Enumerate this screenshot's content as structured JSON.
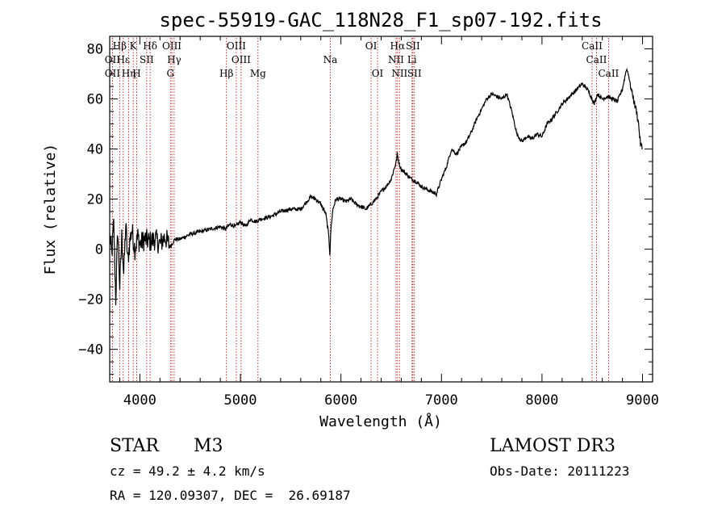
{
  "chart_data": {
    "type": "line",
    "title": "spec-55919-GAC_118N28_F1_sp07-192.fits",
    "xlabel": "Wavelength (Å)",
    "ylabel": "Flux (relative)",
    "xlim": [
      3700,
      9100
    ],
    "ylim": [
      -53,
      85
    ],
    "x_ticks": [
      4000,
      5000,
      6000,
      7000,
      8000,
      9000
    ],
    "x_tick_labels": [
      "4000",
      "5000",
      "6000",
      "7000",
      "8000",
      "9000"
    ],
    "y_ticks": [
      -40,
      -20,
      0,
      20,
      40,
      60,
      80
    ],
    "y_tick_labels": [
      "−40",
      "−20",
      "0",
      "20",
      "40",
      "60",
      "80"
    ],
    "grid": false,
    "series": [
      {
        "name": "spectrum",
        "x": [
          3700,
          3720,
          3740,
          3760,
          3780,
          3800,
          3820,
          3840,
          3860,
          3880,
          3900,
          3920,
          3950,
          3980,
          4000,
          4050,
          4100,
          4150,
          4200,
          4250,
          4300,
          4350,
          4400,
          4450,
          4500,
          4600,
          4700,
          4800,
          4850,
          4900,
          4950,
          5000,
          5050,
          5100,
          5150,
          5200,
          5300,
          5400,
          5500,
          5600,
          5700,
          5750,
          5800,
          5850,
          5880,
          5890,
          5900,
          5920,
          5950,
          6000,
          6050,
          6100,
          6150,
          6200,
          6250,
          6300,
          6350,
          6400,
          6450,
          6500,
          6550,
          6560,
          6570,
          6580,
          6600,
          6650,
          6700,
          6750,
          6800,
          6850,
          6900,
          6950,
          7000,
          7050,
          7100,
          7150,
          7200,
          7250,
          7300,
          7350,
          7400,
          7450,
          7500,
          7550,
          7600,
          7650,
          7700,
          7750,
          7800,
          7850,
          7900,
          7950,
          8000,
          8050,
          8100,
          8150,
          8200,
          8250,
          8300,
          8350,
          8400,
          8450,
          8500,
          8520,
          8550,
          8600,
          8650,
          8700,
          8750,
          8800,
          8820,
          8840,
          8860,
          8880,
          8900,
          8920,
          8940,
          8960,
          8980,
          9000
        ],
        "values": [
          5,
          -2,
          10,
          -20,
          8,
          -15,
          5,
          -10,
          10,
          -5,
          3,
          8,
          0,
          5,
          2,
          4,
          3,
          4,
          2,
          5,
          1,
          4,
          4,
          5,
          6,
          7,
          8,
          9,
          8,
          10,
          9,
          11,
          9,
          12,
          11,
          12,
          13,
          15,
          16,
          16,
          21,
          20,
          18,
          14,
          5,
          -2,
          8,
          16,
          20,
          20,
          19,
          20,
          18,
          17,
          16,
          18,
          20,
          23,
          25,
          28,
          35,
          38,
          36,
          34,
          32,
          30,
          28,
          27,
          25,
          24,
          23,
          22,
          28,
          33,
          40,
          38,
          41,
          43,
          47,
          52,
          56,
          60,
          62,
          61,
          60,
          62,
          55,
          46,
          43,
          45,
          44,
          46,
          45,
          50,
          52,
          55,
          58,
          60,
          62,
          64,
          66,
          64,
          60,
          58,
          62,
          60,
          61,
          60,
          59,
          64,
          68,
          72,
          70,
          65,
          62,
          58,
          55,
          50,
          42,
          40
        ]
      }
    ],
    "lines": [
      {
        "label": "Hβ",
        "wavelength": 3799,
        "row": 1
      },
      {
        "label": "OII",
        "wavelength": 3727,
        "row": 2
      },
      {
        "label": "OII",
        "wavelength": 3727,
        "row": 3
      },
      {
        "label": "Hε",
        "wavelength": 3835,
        "row": 2
      },
      {
        "label": "Hη",
        "wavelength": 3889,
        "row": 3
      },
      {
        "label": "K",
        "wavelength": 3934,
        "row": 1
      },
      {
        "label": "H",
        "wavelength": 3969,
        "row": 3
      },
      {
        "label": "SII",
        "wavelength": 4068,
        "row": 2
      },
      {
        "label": "Hδ",
        "wavelength": 4102,
        "row": 1
      },
      {
        "label": "OIII",
        "wavelength": 4318,
        "row": 1
      },
      {
        "label": "Hγ",
        "wavelength": 4341,
        "row": 2
      },
      {
        "label": "G",
        "wavelength": 4304,
        "row": 3
      },
      {
        "label": "Hβ",
        "wavelength": 4861,
        "row": 3
      },
      {
        "label": "OIII",
        "wavelength": 4959,
        "row": 1
      },
      {
        "label": "OIII",
        "wavelength": 5007,
        "row": 2
      },
      {
        "label": "Mg",
        "wavelength": 5175,
        "row": 3
      },
      {
        "label": "Na",
        "wavelength": 5894,
        "row": 2
      },
      {
        "label": "OI",
        "wavelength": 6300,
        "row": 1
      },
      {
        "label": "OI",
        "wavelength": 6364,
        "row": 3
      },
      {
        "label": "Hα",
        "wavelength": 6563,
        "row": 1
      },
      {
        "label": "NII",
        "wavelength": 6548,
        "row": 2
      },
      {
        "label": "NII",
        "wavelength": 6583,
        "row": 3
      },
      {
        "label": "SII",
        "wavelength": 6716,
        "row": 1
      },
      {
        "label": "Li",
        "wavelength": 6707,
        "row": 2
      },
      {
        "label": "SII",
        "wavelength": 6731,
        "row": 3
      },
      {
        "label": "CaII",
        "wavelength": 8498,
        "row": 1
      },
      {
        "label": "CaII",
        "wavelength": 8542,
        "row": 2
      },
      {
        "label": "CaII",
        "wavelength": 8662,
        "row": 3
      }
    ]
  },
  "info": {
    "object_type": "STAR",
    "subclass": "M3",
    "cz": "cz = 49.2 ± 4.2 km/s",
    "radec": "RA = 120.09307, DEC =  26.69187",
    "survey": "LAMOST DR3",
    "obs_date": "Obs-Date: 20111223"
  },
  "colors": {
    "line_marker": "#b22222",
    "spectrum": "#000000"
  }
}
